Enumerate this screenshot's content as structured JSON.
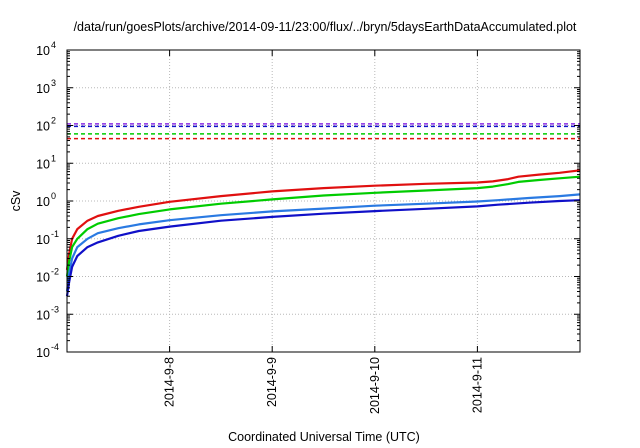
{
  "chart_data": {
    "type": "line",
    "title": "/data/run/goesPlots/archive/2014-09-11/23:00/flux/../bryn/5daysEarthDataAccumulated.plot",
    "xlabel": "Coordinated Universal Time (UTC)",
    "ylabel": "cSv",
    "yscale": "log",
    "ylim": [
      0.0001,
      10000
    ],
    "xlim_days": [
      0,
      5
    ],
    "grid": true,
    "legend": "none",
    "x_ticks": [
      {
        "label": "2014-9-8",
        "day": 1
      },
      {
        "label": "2014-9-9",
        "day": 2
      },
      {
        "label": "2014-9-10",
        "day": 3
      },
      {
        "label": "2014-9-11",
        "day": 4
      }
    ],
    "y_ticks": [
      {
        "mantissa": "10",
        "exp": "-4",
        "value": 0.0001
      },
      {
        "mantissa": "10",
        "exp": "-3",
        "value": 0.001
      },
      {
        "mantissa": "10",
        "exp": "-2",
        "value": 0.01
      },
      {
        "mantissa": "10",
        "exp": "-1",
        "value": 0.1
      },
      {
        "mantissa": "10",
        "exp": "0",
        "value": 1
      },
      {
        "mantissa": "10",
        "exp": "1",
        "value": 10
      },
      {
        "mantissa": "10",
        "exp": "2",
        "value": 100
      },
      {
        "mantissa": "10",
        "exp": "3",
        "value": 1000
      },
      {
        "mantissa": "10",
        "exp": "4",
        "value": 10000
      }
    ],
    "thresholds": [
      {
        "color": "#8a2be2",
        "value": 110
      },
      {
        "color": "#1010c8",
        "value": 95
      },
      {
        "color": "#00cc00",
        "value": 60
      },
      {
        "color": "#e01010",
        "value": 45
      }
    ],
    "series": [
      {
        "color": "#e01010",
        "x": [
          0.0,
          0.02,
          0.05,
          0.1,
          0.2,
          0.3,
          0.5,
          0.7,
          1.0,
          1.5,
          2.0,
          2.5,
          3.0,
          3.5,
          4.0,
          4.15,
          4.3,
          4.4,
          4.6,
          4.8,
          5.0
        ],
        "y": [
          0.015,
          0.04,
          0.1,
          0.18,
          0.3,
          0.4,
          0.55,
          0.7,
          0.95,
          1.35,
          1.8,
          2.2,
          2.55,
          2.85,
          3.1,
          3.3,
          3.8,
          4.4,
          5.0,
          5.6,
          6.5
        ]
      },
      {
        "color": "#00cc00",
        "x": [
          0.0,
          0.02,
          0.05,
          0.1,
          0.2,
          0.3,
          0.5,
          0.7,
          1.0,
          1.5,
          2.0,
          2.5,
          3.0,
          3.5,
          4.0,
          4.15,
          4.3,
          4.4,
          4.6,
          4.8,
          5.0
        ],
        "y": [
          0.01,
          0.025,
          0.06,
          0.1,
          0.18,
          0.25,
          0.35,
          0.45,
          0.6,
          0.85,
          1.1,
          1.4,
          1.65,
          1.9,
          2.2,
          2.4,
          2.8,
          3.2,
          3.6,
          4.0,
          4.4
        ]
      },
      {
        "color": "#2a7ae2",
        "x": [
          0.0,
          0.02,
          0.05,
          0.1,
          0.2,
          0.3,
          0.5,
          0.7,
          1.0,
          1.5,
          2.0,
          2.5,
          3.0,
          3.5,
          4.0,
          4.2,
          4.5,
          4.8,
          5.0
        ],
        "y": [
          0.004,
          0.012,
          0.03,
          0.06,
          0.1,
          0.14,
          0.19,
          0.24,
          0.31,
          0.42,
          0.53,
          0.63,
          0.75,
          0.85,
          0.97,
          1.05,
          1.2,
          1.35,
          1.5
        ]
      },
      {
        "color": "#1010c8",
        "x": [
          0.0,
          0.02,
          0.05,
          0.1,
          0.2,
          0.3,
          0.5,
          0.7,
          1.0,
          1.5,
          2.0,
          2.5,
          3.0,
          3.5,
          4.0,
          4.2,
          4.5,
          4.8,
          5.0
        ],
        "y": [
          0.003,
          0.007,
          0.018,
          0.035,
          0.06,
          0.08,
          0.12,
          0.16,
          0.21,
          0.3,
          0.38,
          0.46,
          0.54,
          0.62,
          0.72,
          0.8,
          0.9,
          1.0,
          1.05
        ]
      }
    ]
  }
}
